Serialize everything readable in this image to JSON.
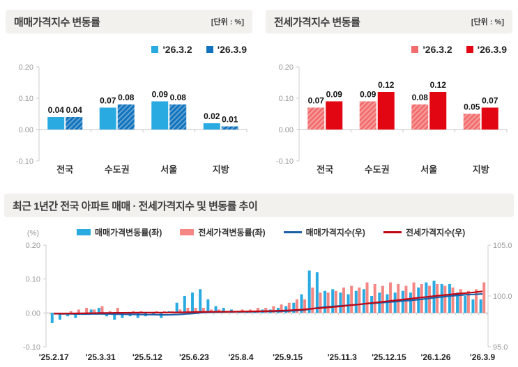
{
  "chart_data": [
    {
      "id": "sale-weekly-change",
      "type": "bar",
      "title": "매매가격지수 변동률",
      "unit": "[단위 : %]",
      "categories": [
        "전국",
        "수도권",
        "서울",
        "지방"
      ],
      "series": [
        {
          "name": "'26.3.2",
          "color": "#29abe2",
          "hatch": false,
          "values": [
            0.04,
            0.07,
            0.09,
            0.02
          ]
        },
        {
          "name": "'26.3.9",
          "color": "#1173bd",
          "hatch": true,
          "values": [
            0.04,
            0.08,
            0.08,
            0.01
          ]
        }
      ],
      "ylim": [
        -0.1,
        0.2
      ],
      "yticks": [
        0.2,
        0.1,
        0.0,
        -0.1
      ],
      "grid": false,
      "legend_position": "top-right"
    },
    {
      "id": "jeonse-weekly-change",
      "type": "bar",
      "title": "전세가격지수 변동률",
      "unit": "[단위 : %]",
      "categories": [
        "전국",
        "수도권",
        "서울",
        "지방"
      ],
      "series": [
        {
          "name": "'26.3.2",
          "color": "#f26d6d",
          "hatch": true,
          "values": [
            0.07,
            0.09,
            0.08,
            0.05
          ]
        },
        {
          "name": "'26.3.9",
          "color": "#e20613",
          "hatch": false,
          "values": [
            0.09,
            0.12,
            0.12,
            0.07
          ]
        }
      ],
      "ylim": [
        -0.1,
        0.2
      ],
      "yticks": [
        0.2,
        0.1,
        0.0,
        -0.1
      ],
      "grid": false,
      "legend_position": "top-right"
    },
    {
      "id": "trend-combo",
      "type": "area",
      "combo": "bar+line",
      "title": "최근 1년간 전국 아파트 매매 · 전세가격지수 및 변동률 추이",
      "left_axis": {
        "label": "(%)",
        "ticks": [
          0.2,
          0.1,
          0.0,
          -0.1
        ],
        "lim": [
          -0.1,
          0.2
        ]
      },
      "right_axis": {
        "ticks": [
          105.0,
          100.0,
          95.0
        ],
        "lim": [
          95,
          105
        ]
      },
      "x_tick_labels": [
        "'25.2.17",
        "'25.3.31",
        "'25.5.12",
        "'25.6.23",
        "'25.8.4",
        "'25.9.15",
        "'25.11.3",
        "'25.12.15",
        "'26.1.26",
        "'26.3.9"
      ],
      "x_tick_indices": [
        0,
        6,
        12,
        18,
        24,
        30,
        37,
        43,
        49,
        55
      ],
      "bar_series": [
        {
          "name": "매매가격변동률(좌)",
          "color": "#29abe2",
          "values": [
            -0.03,
            -0.02,
            -0.01,
            -0.015,
            -0.005,
            0.01,
            0.015,
            -0.01,
            -0.02,
            -0.015,
            -0.01,
            -0.015,
            -0.01,
            -0.005,
            -0.015,
            0.005,
            0.03,
            0.05,
            0.06,
            0.07,
            0.04,
            0.02,
            0.015,
            0.01,
            0.005,
            0.005,
            0.005,
            0.01,
            0.01,
            0.015,
            0.02,
            0.03,
            0.055,
            0.125,
            0.12,
            0.065,
            0.07,
            0.06,
            0.055,
            0.065,
            0.07,
            0.05,
            0.06,
            0.055,
            0.06,
            0.065,
            0.06,
            0.075,
            0.09,
            0.095,
            0.085,
            0.085,
            0.06,
            0.05,
            0.04,
            0.04
          ]
        },
        {
          "name": "전세가격변동률(좌)",
          "color": "#f48784",
          "values": [
            -0.005,
            -0.005,
            0.005,
            0.01,
            0.015,
            0.01,
            0.02,
            0.005,
            0.015,
            0.0,
            0.005,
            0.005,
            0.0,
            0.005,
            0.005,
            0.005,
            0.01,
            0.015,
            0.015,
            0.015,
            0.01,
            0.01,
            0.005,
            0.005,
            0.01,
            0.01,
            0.015,
            0.015,
            0.02,
            0.025,
            0.03,
            0.04,
            0.04,
            0.075,
            0.06,
            0.06,
            0.065,
            0.075,
            0.08,
            0.075,
            0.09,
            0.085,
            0.08,
            0.09,
            0.085,
            0.08,
            0.09,
            0.085,
            0.08,
            0.085,
            0.08,
            0.075,
            0.07,
            0.065,
            0.07,
            0.09
          ]
        }
      ],
      "line_series": [
        {
          "name": "매매가격지수(우)",
          "color": "#1b5fa6",
          "base_index": 98.3
        },
        {
          "name": "전세가격지수(우)",
          "color": "#c00613",
          "base_index": 98.28
        }
      ]
    }
  ]
}
